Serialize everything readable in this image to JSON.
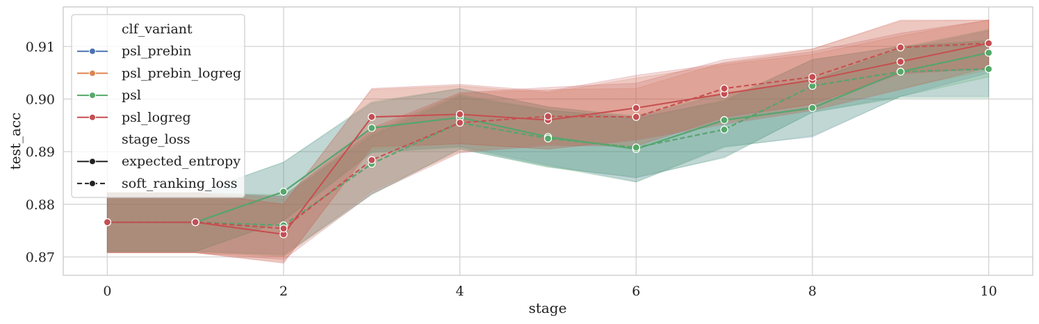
{
  "chart_data": {
    "type": "line",
    "xlabel": "stage",
    "ylabel": "test_acc",
    "x": [
      0,
      1,
      2,
      3,
      4,
      5,
      6,
      7,
      8,
      9,
      10
    ],
    "xlim": [
      -0.5,
      10.5
    ],
    "ylim": [
      0.8665,
      0.9175
    ],
    "xticks": [
      0,
      2,
      4,
      6,
      8,
      10
    ],
    "yticks": [
      0.87,
      0.88,
      0.89,
      0.9,
      0.91
    ],
    "ytick_labels": [
      "0.87",
      "0.88",
      "0.89",
      "0.90",
      "0.91"
    ],
    "grid": true,
    "legend_position": "top-left",
    "legend": {
      "hue_title": "clf_variant",
      "style_title": "stage_loss",
      "hue_entries": [
        "psl_prebin",
        "psl_prebin_logreg",
        "psl",
        "psl_logreg"
      ],
      "style_entries": [
        "expected_entropy",
        "soft_ranking_loss"
      ]
    },
    "colors": {
      "psl_prebin": "#4c72b0",
      "psl_prebin_logreg": "#dd8452",
      "psl": "#55a868",
      "psl_logreg": "#c44e52",
      "style_marker": "#222222"
    },
    "series": [
      {
        "name": "psl_prebin",
        "style": "expected_entropy",
        "values": [
          0.8766,
          0.8766,
          0.8824,
          0.8945,
          0.8965,
          0.8928,
          0.8905,
          0.896,
          0.8983,
          0.9052,
          0.9088
        ],
        "lower": [
          0.871,
          0.871,
          0.877,
          0.89,
          0.891,
          0.8875,
          0.8843,
          0.891,
          0.8928,
          0.9005,
          0.905
        ],
        "upper": [
          0.882,
          0.882,
          0.888,
          0.8992,
          0.902,
          0.8985,
          0.8965,
          0.901,
          0.9035,
          0.9095,
          0.913
        ]
      },
      {
        "name": "psl_prebin",
        "style": "soft_ranking_loss",
        "values": [
          0.8766,
          0.8766,
          0.876,
          0.8877,
          0.8955,
          0.8925,
          0.8908,
          0.8942,
          0.9025,
          0.9052,
          0.9057
        ],
        "lower": [
          0.871,
          0.871,
          0.8705,
          0.882,
          0.8905,
          0.8872,
          0.885,
          0.889,
          0.8975,
          0.9005,
          0.9005
        ],
        "upper": [
          0.882,
          0.882,
          0.8815,
          0.893,
          0.9005,
          0.8978,
          0.8965,
          0.8995,
          0.9075,
          0.91,
          0.911
        ]
      },
      {
        "name": "psl_prebin_logreg",
        "style": "expected_entropy",
        "values": [
          0.8766,
          0.8766,
          0.8743,
          0.8966,
          0.8971,
          0.896,
          0.8983,
          0.901,
          0.9036,
          0.9071,
          0.9106
        ],
        "lower": [
          0.8708,
          0.8708,
          0.869,
          0.8905,
          0.8915,
          0.8905,
          0.8925,
          0.8955,
          0.898,
          0.902,
          0.9055
        ],
        "upper": [
          0.8822,
          0.8822,
          0.88,
          0.9018,
          0.9025,
          0.9012,
          0.904,
          0.9065,
          0.9085,
          0.912,
          0.915
        ]
      },
      {
        "name": "psl_prebin_logreg",
        "style": "soft_ranking_loss",
        "values": [
          0.8766,
          0.8766,
          0.8754,
          0.8884,
          0.8955,
          0.8967,
          0.8966,
          0.902,
          0.9042,
          0.9098,
          0.9106
        ],
        "lower": [
          0.8708,
          0.8708,
          0.87,
          0.8825,
          0.89,
          0.8915,
          0.8912,
          0.8968,
          0.899,
          0.905,
          0.906
        ],
        "upper": [
          0.8822,
          0.8822,
          0.881,
          0.894,
          0.901,
          0.9018,
          0.902,
          0.907,
          0.9095,
          0.9148,
          0.915
        ]
      },
      {
        "name": "psl",
        "style": "expected_entropy",
        "values": [
          0.8766,
          0.8766,
          0.8824,
          0.8945,
          0.8965,
          0.8928,
          0.8905,
          0.896,
          0.8983,
          0.9052,
          0.9088
        ],
        "lower": [
          0.871,
          0.871,
          0.8768,
          0.8898,
          0.8908,
          0.8872,
          0.8842,
          0.8908,
          0.893,
          0.9005,
          0.9042
        ],
        "upper": [
          0.8822,
          0.8822,
          0.888,
          0.8995,
          0.902,
          0.8985,
          0.8968,
          0.9012,
          0.9035,
          0.9098,
          0.9132
        ]
      },
      {
        "name": "psl",
        "style": "soft_ranking_loss",
        "values": [
          0.8766,
          0.8766,
          0.876,
          0.8877,
          0.8955,
          0.8925,
          0.8908,
          0.8942,
          0.9025,
          0.9052,
          0.9057
        ],
        "lower": [
          0.871,
          0.871,
          0.8702,
          0.8818,
          0.8905,
          0.887,
          0.8852,
          0.8888,
          0.8975,
          0.9002,
          0.9002
        ],
        "upper": [
          0.8822,
          0.8822,
          0.8818,
          0.8935,
          0.9008,
          0.898,
          0.8962,
          0.8998,
          0.9075,
          0.91,
          0.9112
        ]
      },
      {
        "name": "psl_logreg",
        "style": "expected_entropy",
        "values": [
          0.8766,
          0.8766,
          0.8743,
          0.8966,
          0.8971,
          0.896,
          0.8983,
          0.901,
          0.9036,
          0.9071,
          0.9106
        ],
        "lower": [
          0.8708,
          0.8708,
          0.8688,
          0.891,
          0.8915,
          0.8905,
          0.8922,
          0.8952,
          0.8978,
          0.9018,
          0.906
        ],
        "upper": [
          0.8822,
          0.8822,
          0.88,
          0.902,
          0.9028,
          0.9015,
          0.9045,
          0.9068,
          0.909,
          0.9125,
          0.915
        ]
      },
      {
        "name": "psl_logreg",
        "style": "soft_ranking_loss",
        "values": [
          0.8766,
          0.8766,
          0.8754,
          0.8884,
          0.8955,
          0.8967,
          0.8966,
          0.902,
          0.9042,
          0.9098,
          0.9106
        ],
        "lower": [
          0.8708,
          0.8708,
          0.8695,
          0.882,
          0.8898,
          0.8912,
          0.891,
          0.8965,
          0.899,
          0.9048,
          0.9058
        ],
        "upper": [
          0.8822,
          0.8822,
          0.8815,
          0.8945,
          0.9012,
          0.9022,
          0.903,
          0.9075,
          0.9095,
          0.915,
          0.915
        ]
      }
    ]
  }
}
